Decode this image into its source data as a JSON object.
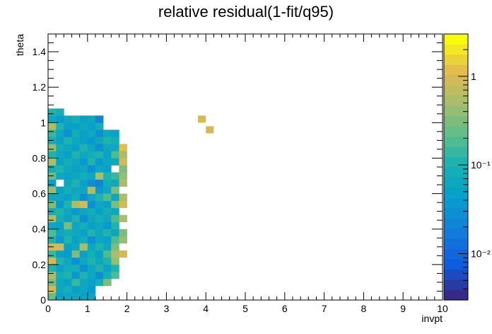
{
  "chart_data": {
    "type": "heatmap",
    "title": "relative residual(1-fit/q95)",
    "xlabel": "invpt",
    "ylabel": "theta",
    "xlim": [
      0,
      10
    ],
    "ylim": [
      0,
      1.5
    ],
    "x_ticks": [
      "0",
      "1",
      "2",
      "3",
      "4",
      "5",
      "6",
      "7",
      "8",
      "9",
      "10"
    ],
    "y_ticks": [
      "0",
      "0.2",
      "0.4",
      "0.6",
      "0.8",
      "1",
      "1.2",
      "1.4"
    ],
    "x_bin_width": 0.2,
    "y_bin_width": 0.04,
    "colorbar": {
      "scale": "log",
      "zlim": [
        0.003,
        3
      ],
      "tick_labels": [
        {
          "label": "1",
          "value": 1
        },
        {
          "label": "10⁻¹",
          "value": 0.1
        },
        {
          "label": "10⁻²",
          "value": 0.01
        }
      ]
    },
    "cells_note": "Each row of 'rows' lists z values for consecutive x bins starting at x=0 (bin width 0.2); row index i covers theta from i*0.04. null = empty bin.",
    "rows": [
      [
        0.25,
        0.05,
        0.06,
        0.07,
        0.05,
        0.06,
        null,
        null,
        null,
        null,
        null,
        null,
        null,
        null
      ],
      [
        0.9,
        0.06,
        0.08,
        0.05,
        0.07,
        0.04,
        null,
        null,
        null,
        null,
        null,
        null,
        null,
        null
      ],
      [
        0.3,
        0.07,
        0.05,
        0.15,
        0.06,
        0.05,
        0.08,
        0.3,
        null,
        null,
        null,
        null,
        null,
        null
      ],
      [
        0.6,
        0.08,
        0.1,
        0.04,
        0.12,
        0.07,
        0.03,
        0.09,
        0.2,
        null,
        null,
        null,
        null,
        null
      ],
      [
        0.1,
        0.05,
        0.08,
        0.09,
        0.03,
        0.06,
        0.1,
        0.05,
        0.12,
        null,
        null,
        null,
        null,
        null
      ],
      [
        0.9,
        0.12,
        0.06,
        0.03,
        0.07,
        0.1,
        0.07,
        0.12,
        0.4,
        null,
        null,
        null,
        null,
        null
      ],
      [
        0.15,
        0.05,
        0.04,
        0.3,
        0.05,
        0.08,
        0.05,
        0.2,
        0.6,
        0.9,
        null,
        null,
        null,
        null
      ],
      [
        1.0,
        0.8,
        0.05,
        0.07,
        0.5,
        0.06,
        0.1,
        0.06,
        0.3,
        null,
        null,
        null,
        null,
        null
      ],
      [
        0.12,
        0.04,
        0.1,
        0.05,
        0.08,
        0.03,
        0.07,
        0.05,
        0.2,
        0.4,
        null,
        null,
        null,
        null
      ],
      [
        0.2,
        0.06,
        0.08,
        0.07,
        0.05,
        0.12,
        0.06,
        0.1,
        0.06,
        0.3,
        null,
        null,
        null,
        null
      ],
      [
        0.06,
        0.05,
        0.3,
        0.06,
        0.09,
        0.05,
        0.07,
        0.04,
        0.12,
        null,
        null,
        null,
        null,
        null
      ],
      [
        0.5,
        0.08,
        0.05,
        0.1,
        0.03,
        0.06,
        0.08,
        0.06,
        0.2,
        0.5,
        null,
        null,
        null,
        null
      ],
      [
        0.09,
        0.12,
        0.06,
        0.04,
        0.07,
        0.08,
        0.05,
        0.09,
        0.06,
        null,
        null,
        null,
        null,
        null
      ],
      [
        0.3,
        0.04,
        0.1,
        0.6,
        0.8,
        0.03,
        0.07,
        0.05,
        0.3,
        0.9,
        null,
        null,
        null,
        null
      ],
      [
        0.07,
        0.06,
        0.05,
        0.08,
        0.03,
        0.06,
        0.1,
        0.2,
        0.06,
        0.5,
        null,
        null,
        null,
        null
      ],
      [
        0.4,
        0.05,
        0.08,
        0.06,
        0.07,
        0.5,
        0.04,
        0.06,
        0.3,
        null,
        null,
        null,
        null,
        null
      ],
      [
        0.05,
        null,
        0.06,
        0.1,
        0.05,
        0.03,
        0.02,
        0.08,
        0.07,
        0.6,
        null,
        null,
        null,
        null
      ],
      [
        0.25,
        0.07,
        0.05,
        0.06,
        0.09,
        0.06,
        0.5,
        0.1,
        0.15,
        0.4,
        null,
        null,
        null,
        null
      ],
      [
        0.08,
        0.1,
        0.06,
        0.05,
        0.07,
        0.03,
        0.06,
        0.05,
        null,
        0.3,
        null,
        null,
        null,
        null
      ],
      [
        0.6,
        0.05,
        0.08,
        0.07,
        0.04,
        0.1,
        0.04,
        0.07,
        0.06,
        0.8,
        null,
        null,
        null,
        null
      ],
      [
        0.1,
        0.06,
        0.05,
        0.12,
        0.06,
        0.08,
        0.1,
        0.05,
        0.2,
        0.5,
        null,
        null,
        null,
        null
      ],
      [
        0.4,
        0.08,
        0.06,
        0.05,
        0.1,
        0.06,
        0.03,
        0.07,
        0.06,
        1.2,
        null,
        null,
        null,
        null
      ],
      [
        0.08,
        0.05,
        0.1,
        0.06,
        0.05,
        0.04,
        0.07,
        0.1,
        0.08,
        null,
        null,
        null,
        null,
        null
      ],
      [
        0.15,
        0.06,
        0.03,
        0.08,
        0.05,
        0.06,
        0.03,
        0.06,
        0.05,
        null,
        null,
        null,
        null,
        null
      ],
      [
        0.6,
        0.1,
        0.05,
        0.05,
        0.07,
        0.05,
        0.08,
        null,
        null,
        null,
        null,
        null,
        null,
        null
      ],
      [
        0.06,
        0.04,
        0.06,
        0.08,
        0.05,
        0.06,
        0.02,
        null,
        null,
        null,
        null,
        null,
        null,
        null
      ],
      [
        0.1,
        0.08,
        null,
        null,
        null,
        null,
        null,
        null,
        null,
        null,
        null,
        null,
        null,
        null
      ]
    ],
    "outliers": [
      {
        "x": 3.9,
        "y": 1.0,
        "z": 1.0
      },
      {
        "x": 4.1,
        "y": 0.94,
        "z": 0.8
      }
    ]
  }
}
